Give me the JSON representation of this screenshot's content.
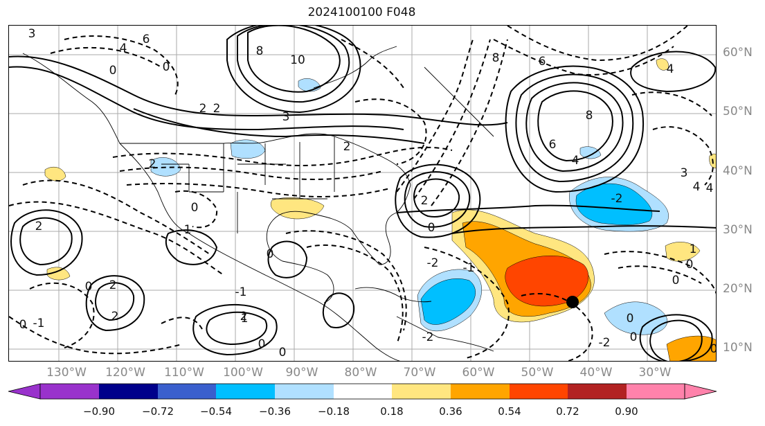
{
  "map": {
    "title": "2024100100 F048",
    "lat_labels": [
      "60°N",
      "50°N",
      "40°N",
      "30°N",
      "20°N",
      "10°N"
    ],
    "lon_labels": [
      "130°W",
      "120°W",
      "110°W",
      "100°W",
      "90°W",
      "80°W",
      "70°W",
      "60°W",
      "50°W",
      "40°W",
      "30°W"
    ],
    "contour_labels": [
      "3",
      "6",
      "4",
      "10",
      "8",
      "6",
      "8",
      "4",
      "2",
      "2",
      "3",
      "0",
      "2",
      "1",
      "0",
      "0",
      "2",
      "2",
      "4",
      "6",
      "8",
      "4",
      "3",
      "2",
      "2",
      "-2",
      "0",
      "1",
      "0",
      "0",
      "-1",
      "0",
      "-1",
      "0",
      "0",
      "0",
      "-2",
      "2",
      "0",
      "-1",
      "-2",
      "0",
      "0",
      "-2",
      "1",
      "4",
      "2",
      "0"
    ],
    "marker": "black-dot"
  },
  "colorbar": {
    "tick_labels": [
      "−0.90",
      "−0.72",
      "−0.54",
      "−0.36",
      "−0.18",
      "0.18",
      "0.36",
      "0.54",
      "0.72",
      "0.90"
    ],
    "colors": [
      "#9932cc",
      "#00008b",
      "#3a5fcd",
      "#00bfff",
      "#b0e0ff",
      "#ffffff",
      "#ffe680",
      "#ffa500",
      "#ff4500",
      "#b22222",
      "#ff82ab"
    ]
  }
}
